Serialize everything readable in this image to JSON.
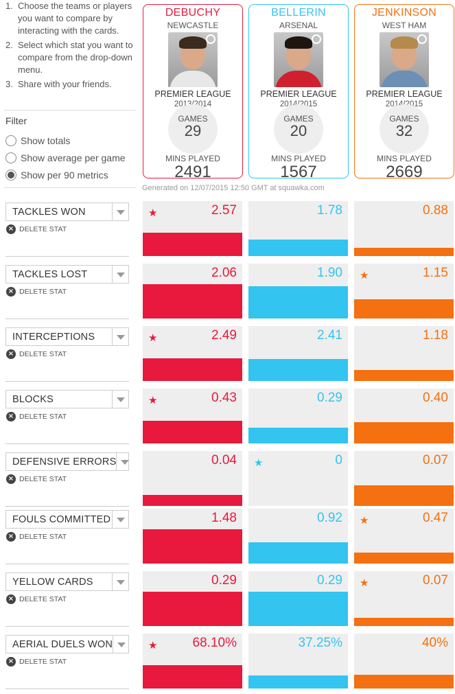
{
  "instructions": [
    {
      "num": "1.",
      "text": "Choose the teams or players you want to compare by interacting with the cards."
    },
    {
      "num": "2.",
      "text": "Select which stat you want to compare from the drop-down menu."
    },
    {
      "num": "3.",
      "text": "Share with your friends."
    }
  ],
  "filter": {
    "title": "Filter",
    "options": [
      {
        "label": "Show totals",
        "checked": false
      },
      {
        "label": "Show average per game",
        "checked": false
      },
      {
        "label": "Show per 90 metrics",
        "checked": true
      }
    ]
  },
  "colors": {
    "debuchy": "#e8193c",
    "bellerin": "#33c4f0",
    "jenkinson": "#f47010"
  },
  "players": [
    {
      "name": "DEBUCHY",
      "team": "NEWCASTLE",
      "league": "PREMIER LEAGUE",
      "season": "2013/2014",
      "games_label": "GAMES",
      "games": "29",
      "mins_label": "MINS PLAYED",
      "mins": "2491"
    },
    {
      "name": "BELLERIN",
      "team": "ARSENAL",
      "league": "PREMIER LEAGUE",
      "season": "2014/2015",
      "games_label": "GAMES",
      "games": "20",
      "mins_label": "MINS PLAYED",
      "mins": "1567"
    },
    {
      "name": "JENKINSON",
      "team": "WEST HAM",
      "league": "PREMIER LEAGUE",
      "season": "2014/2015",
      "games_label": "GAMES",
      "games": "32",
      "mins_label": "MINS PLAYED",
      "mins": "2669"
    }
  ],
  "generated": "Generated on 12/07/2015 12:50 GMT at squawka.com",
  "delete_label": "DELETE STAT",
  "stats": [
    {
      "name": "TACKLES WON",
      "values": [
        "2.57",
        "1.78",
        "0.88"
      ],
      "best": 0,
      "fill": [
        0.68,
        0.47,
        0.23
      ]
    },
    {
      "name": "TACKLES LOST",
      "values": [
        "2.06",
        "1.90",
        "1.15"
      ],
      "best": 2,
      "fill": [
        1.0,
        0.93,
        0.56
      ]
    },
    {
      "name": "INTERCEPTIONS",
      "values": [
        "2.49",
        "2.41",
        "1.18"
      ],
      "best": 0,
      "fill": [
        0.66,
        0.64,
        0.31
      ]
    },
    {
      "name": "BLOCKS",
      "values": [
        "0.43",
        "0.29",
        "0.40"
      ],
      "best": 0,
      "fill": [
        0.66,
        0.45,
        0.62
      ]
    },
    {
      "name": "DEFENSIVE ERRORS",
      "values": [
        "0.04",
        "0",
        "0.07"
      ],
      "best": 1,
      "fill": [
        0.32,
        0,
        0.59
      ]
    },
    {
      "name": "FOULS COMMITTED",
      "values": [
        "1.48",
        "0.92",
        "0.47"
      ],
      "best": 2,
      "fill": [
        1.0,
        0.62,
        0.32
      ]
    },
    {
      "name": "YELLOW CARDS",
      "values": [
        "0.29",
        "0.29",
        "0.07"
      ],
      "best": 2,
      "fill": [
        1.0,
        1.0,
        0.24
      ]
    },
    {
      "name": "AERIAL DUELS WON",
      "values": [
        "68.10%",
        "37.25%",
        "40%"
      ],
      "best": 0,
      "fill": [
        0.68,
        0.37,
        0.4
      ]
    }
  ]
}
